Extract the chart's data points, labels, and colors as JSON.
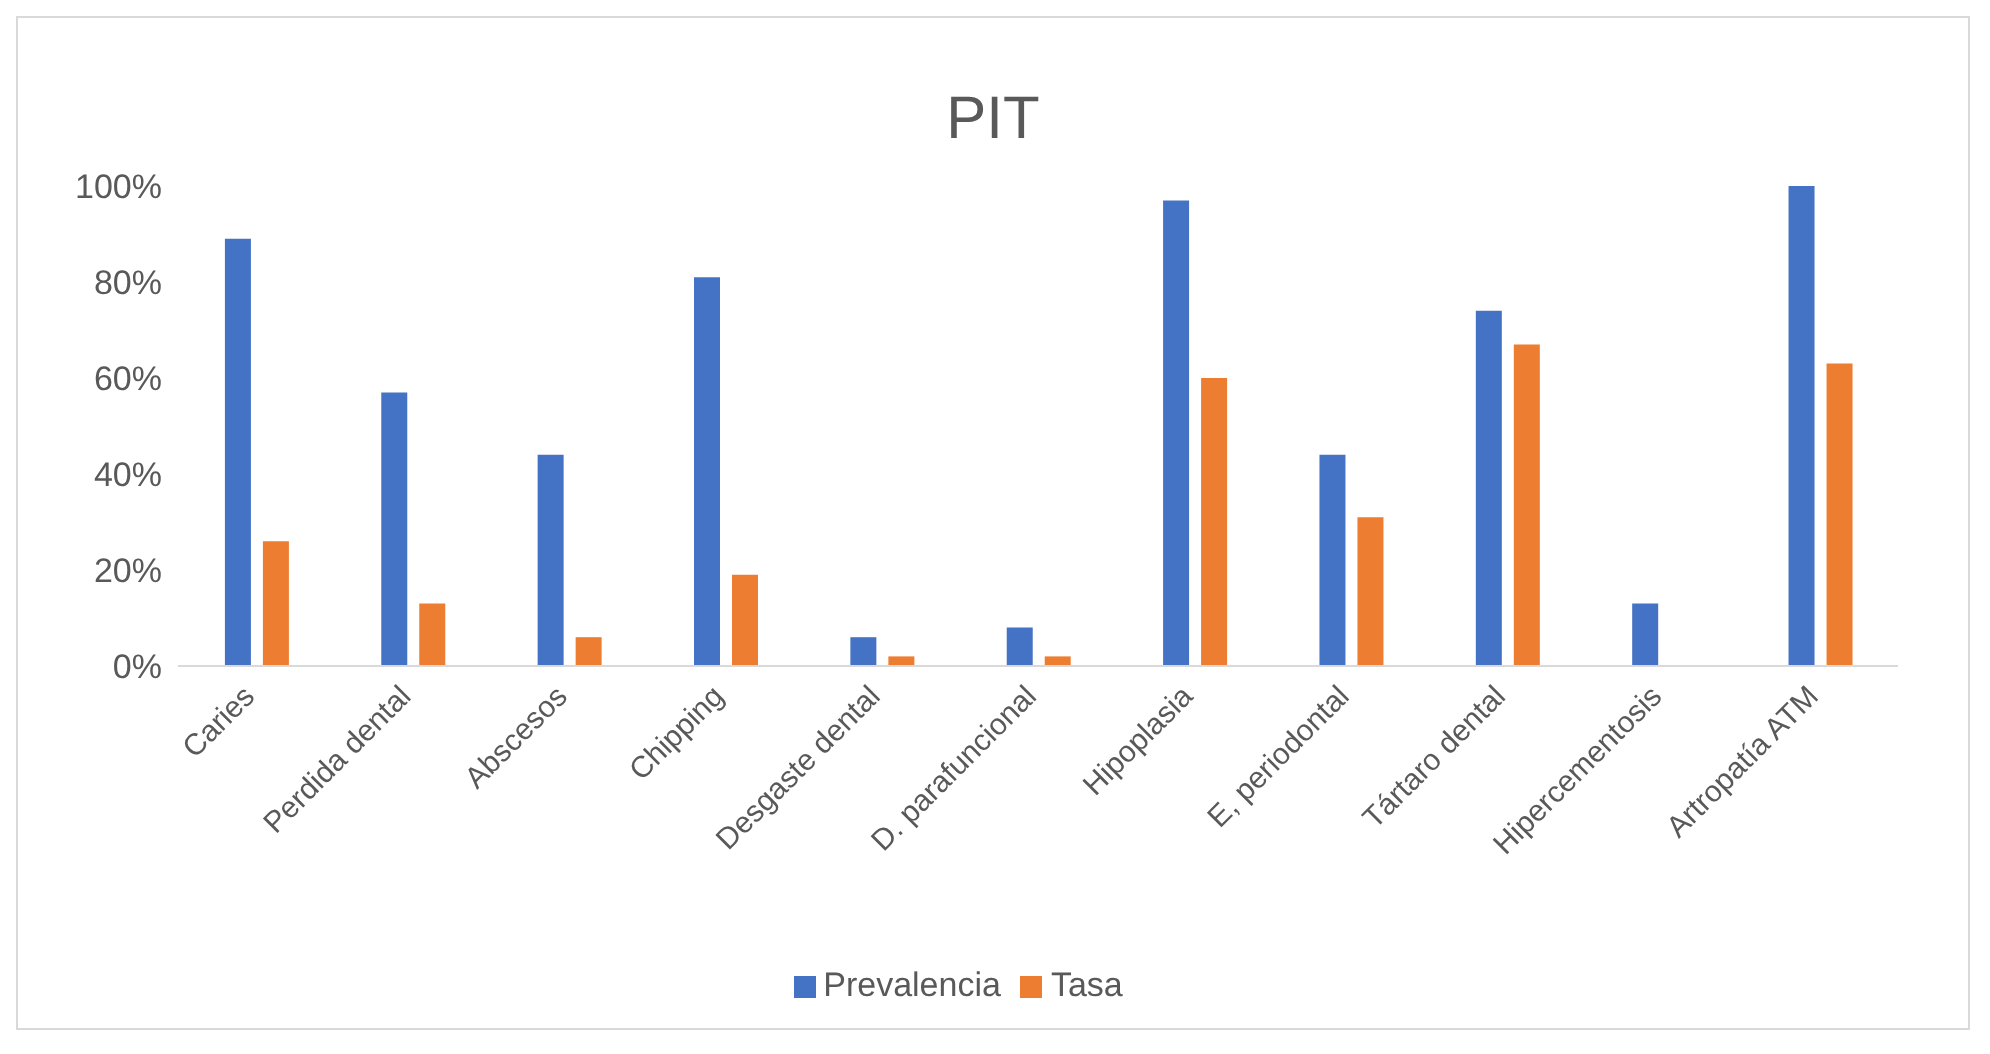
{
  "chart_data": {
    "type": "bar",
    "title": "PIT",
    "categories": [
      "Caries",
      "Perdida dental",
      "Abscesos",
      "Chipping",
      "Desgaste dental",
      "D. parafuncional",
      "Hipoplasia",
      "E, periodontal",
      "Tártaro dental",
      "Hipercementosis",
      "Artropatía ATM"
    ],
    "series": [
      {
        "name": "Prevalencia",
        "color": "#4472c4",
        "values": [
          89,
          57,
          44,
          81,
          6,
          8,
          97,
          44,
          74,
          13,
          100
        ]
      },
      {
        "name": "Tasa",
        "color": "#ed7d31",
        "values": [
          26,
          13,
          6,
          19,
          2,
          2,
          60,
          31,
          67,
          0,
          63
        ]
      }
    ],
    "ylim": [
      0,
      100
    ],
    "yticks": [
      {
        "value": 0,
        "label": "0%"
      },
      {
        "value": 20,
        "label": "20%"
      },
      {
        "value": 40,
        "label": "40%"
      },
      {
        "value": 60,
        "label": "60%"
      },
      {
        "value": 80,
        "label": "80%"
      },
      {
        "value": 100,
        "label": "100%"
      }
    ],
    "grid": false,
    "legend": "bottom"
  }
}
